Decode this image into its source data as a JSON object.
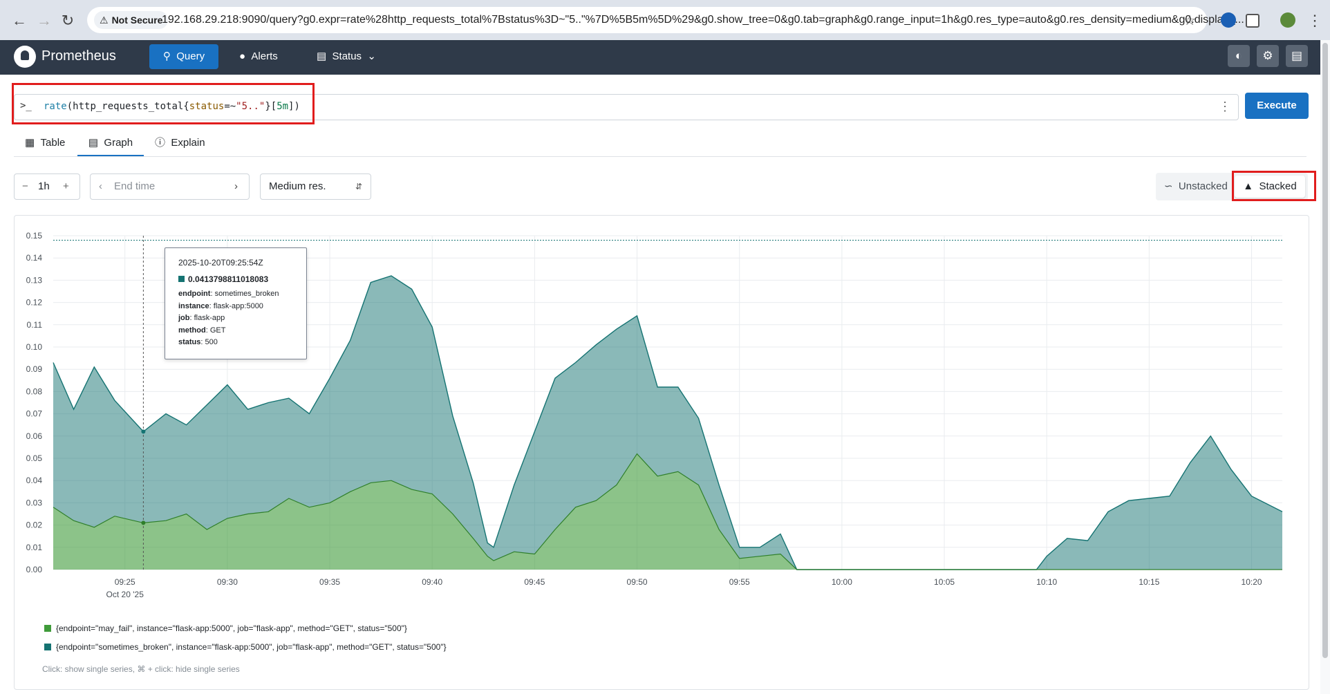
{
  "browser": {
    "security_label": "Not Secure",
    "url": "192.168.29.218:9090/query?g0.expr=rate%28http_requests_total%7Bstatus%3D~\"5..\"%7D%5B5m%5D%29&g0.show_tree=0&g0.tab=graph&g0.range_input=1h&g0.res_type=auto&g0.res_density=medium&g0.display_..."
  },
  "header": {
    "brand": "Prometheus",
    "nav": {
      "query": "Query",
      "alerts": "Alerts",
      "status": "Status"
    }
  },
  "query": {
    "parts": {
      "fn": "rate",
      "p1": "(",
      "metric": "http_requests_total{",
      "label": "status",
      "op": "=~",
      "value": "\"5..\"",
      "p2": "}[",
      "range": "5m",
      "p3": "])"
    },
    "execute_label": "Execute"
  },
  "tabs": {
    "table": "Table",
    "graph": "Graph",
    "explain": "Explain"
  },
  "controls": {
    "range": "1h",
    "end_time_placeholder": "End time",
    "resolution": "Medium res.",
    "unstacked": "Unstacked",
    "stacked": "Stacked"
  },
  "tooltip": {
    "time": "2025-10-20T09:25:54Z",
    "value": "0.0413798811018083",
    "endpoint_key": "endpoint",
    "endpoint": "sometimes_broken",
    "instance_key": "instance",
    "instance": "flask-app:5000",
    "job_key": "job",
    "job": "flask-app",
    "method_key": "method",
    "method": "GET",
    "status_key": "status",
    "status": "500"
  },
  "legend": {
    "series1": "{endpoint=\"may_fail\", instance=\"flask-app:5000\", job=\"flask-app\", method=\"GET\", status=\"500\"}",
    "series2": "{endpoint=\"sometimes_broken\", instance=\"flask-app:5000\", job=\"flask-app\", method=\"GET\", status=\"500\"}",
    "hint": "Click: show single series, ⌘ + click: hide single series"
  },
  "colors": {
    "may_fail": "#3f9b3a",
    "sometimes_broken": "#157372",
    "accent": "#1971c2",
    "highlight": "#e11d1d"
  },
  "chart_data": {
    "type": "area",
    "stacked": true,
    "ylim": [
      0,
      0.15
    ],
    "yticks": [
      "0.00",
      "0.01",
      "0.02",
      "0.03",
      "0.04",
      "0.05",
      "0.06",
      "0.07",
      "0.08",
      "0.09",
      "0.10",
      "0.11",
      "0.12",
      "0.13",
      "0.14",
      "0.15"
    ],
    "xticks": [
      "09:25",
      "09:30",
      "09:35",
      "09:40",
      "09:45",
      "09:50",
      "09:55",
      "10:00",
      "10:05",
      "10:10",
      "10:15",
      "10:20"
    ],
    "xtick_minutes": [
      25,
      30,
      35,
      40,
      45,
      50,
      55,
      60,
      65,
      70,
      75,
      80
    ],
    "date_label": "Oct 20 '25",
    "x_minutes_after_0900": [
      21.5,
      22.5,
      23.5,
      24.5,
      25.9,
      27,
      28,
      29,
      30,
      31,
      32,
      33,
      34,
      35,
      36,
      37,
      38,
      39,
      40,
      41,
      42,
      42.7,
      43,
      44,
      45,
      46,
      47,
      48,
      49,
      50,
      51,
      52,
      53,
      54,
      55,
      56,
      57,
      57.8,
      58,
      60,
      65,
      69.5,
      70,
      71,
      72,
      73,
      74,
      75,
      76,
      77,
      78,
      79,
      80,
      81.5
    ],
    "series": [
      {
        "name": "{endpoint=\"may_fail\", instance=\"flask-app:5000\", job=\"flask-app\", method=\"GET\", status=\"500\"}",
        "values": [
          0.028,
          0.022,
          0.019,
          0.024,
          0.021,
          0.022,
          0.025,
          0.018,
          0.023,
          0.025,
          0.026,
          0.032,
          0.028,
          0.03,
          0.035,
          0.039,
          0.04,
          0.036,
          0.034,
          0.025,
          0.014,
          0.006,
          0.004,
          0.008,
          0.007,
          0.018,
          0.028,
          0.031,
          0.038,
          0.052,
          0.042,
          0.044,
          0.038,
          0.018,
          0.005,
          0.006,
          0.007,
          0.0,
          0.0,
          0.0,
          0.0,
          0.0,
          0.0,
          0.0,
          0.0,
          0.0,
          0.0,
          0.0,
          0.0,
          0.0,
          0.0,
          0.0,
          0.0,
          0.0
        ]
      },
      {
        "name": "{endpoint=\"sometimes_broken\", instance=\"flask-app:5000\", job=\"flask-app\", method=\"GET\", status=\"500\"}",
        "values": [
          0.065,
          0.05,
          0.072,
          0.052,
          0.041,
          0.048,
          0.04,
          0.056,
          0.06,
          0.047,
          0.049,
          0.045,
          0.042,
          0.056,
          0.068,
          0.09,
          0.092,
          0.09,
          0.075,
          0.044,
          0.025,
          0.006,
          0.006,
          0.03,
          0.055,
          0.068,
          0.065,
          0.07,
          0.07,
          0.062,
          0.04,
          0.038,
          0.03,
          0.02,
          0.005,
          0.004,
          0.009,
          0.0,
          0.0,
          0.0,
          0.0,
          0.0,
          0.006,
          0.014,
          0.013,
          0.026,
          0.031,
          0.032,
          0.033,
          0.048,
          0.06,
          0.045,
          0.033,
          0.026
        ]
      }
    ]
  }
}
